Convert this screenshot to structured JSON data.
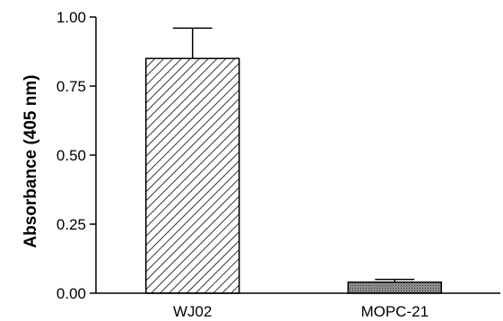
{
  "chart_data": {
    "type": "bar",
    "title": "",
    "xlabel": "",
    "ylabel": "Absorbance (405 nm)",
    "ylim": [
      0,
      1.0
    ],
    "yticks": [
      0.0,
      0.25,
      0.5,
      0.75,
      1.0
    ],
    "ytick_labels": [
      "0.00",
      "0.25",
      "0.50",
      "0.75",
      "1.00"
    ],
    "categories": [
      "WJ02",
      "MOPC-21"
    ],
    "values": [
      0.85,
      0.04
    ],
    "error_upper": [
      0.96,
      0.05
    ],
    "bar_fills": [
      "diagonal-hatch",
      "dense-stipple"
    ],
    "grid": false
  }
}
